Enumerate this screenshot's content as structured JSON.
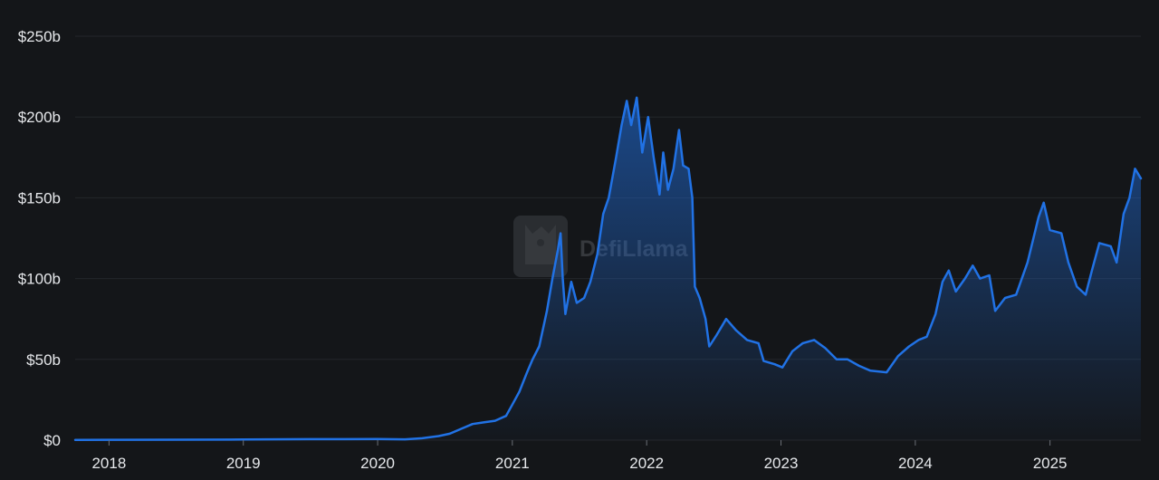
{
  "chart_data": {
    "type": "area",
    "title": "",
    "xlabel": "",
    "ylabel": "",
    "y_unit_prefix": "$",
    "y_unit_suffix": "b",
    "ylim": [
      0,
      250
    ],
    "xlim": [
      "2017-10-01",
      "2025-09-05"
    ],
    "grid": "horizontal",
    "legend": "none",
    "colors": {
      "background": "#141619",
      "line": "#2172e5",
      "fill_top": "#2172e5",
      "grid": "#23262b",
      "text": "#e6e8eb"
    },
    "y_ticks": [
      {
        "value": 0,
        "label": "$0"
      },
      {
        "value": 50,
        "label": "$50b"
      },
      {
        "value": 100,
        "label": "$100b"
      },
      {
        "value": 150,
        "label": "$150b"
      },
      {
        "value": 200,
        "label": "$200b"
      },
      {
        "value": 250,
        "label": "$250b"
      }
    ],
    "x_ticks": [
      {
        "date": "2018-01-01",
        "label": "2018"
      },
      {
        "date": "2019-01-01",
        "label": "2019"
      },
      {
        "date": "2020-01-01",
        "label": "2020"
      },
      {
        "date": "2021-01-01",
        "label": "2021"
      },
      {
        "date": "2022-01-01",
        "label": "2022"
      },
      {
        "date": "2023-01-01",
        "label": "2023"
      },
      {
        "date": "2024-01-01",
        "label": "2024"
      },
      {
        "date": "2025-01-01",
        "label": "2025"
      }
    ],
    "series": [
      {
        "values": [
          [
            "2017-10-01",
            0.1
          ],
          [
            "2018-01-01",
            0.2
          ],
          [
            "2018-07-01",
            0.3
          ],
          [
            "2019-01-01",
            0.4
          ],
          [
            "2019-07-01",
            0.6
          ],
          [
            "2020-01-01",
            0.7
          ],
          [
            "2020-03-15",
            0.5
          ],
          [
            "2020-05-01",
            1.2
          ],
          [
            "2020-06-15",
            2.5
          ],
          [
            "2020-07-15",
            4
          ],
          [
            "2020-08-15",
            7
          ],
          [
            "2020-09-15",
            10
          ],
          [
            "2020-10-15",
            11
          ],
          [
            "2020-11-15",
            12
          ],
          [
            "2020-12-15",
            15
          ],
          [
            "2021-01-01",
            22
          ],
          [
            "2021-01-20",
            30
          ],
          [
            "2021-02-10",
            42
          ],
          [
            "2021-02-25",
            50
          ],
          [
            "2021-03-15",
            58
          ],
          [
            "2021-04-05",
            80
          ],
          [
            "2021-04-20",
            100
          ],
          [
            "2021-05-05",
            118
          ],
          [
            "2021-05-12",
            128
          ],
          [
            "2021-05-18",
            100
          ],
          [
            "2021-05-25",
            78
          ],
          [
            "2021-06-10",
            98
          ],
          [
            "2021-06-25",
            85
          ],
          [
            "2021-07-15",
            88
          ],
          [
            "2021-08-01",
            98
          ],
          [
            "2021-08-20",
            115
          ],
          [
            "2021-09-05",
            140
          ],
          [
            "2021-09-20",
            150
          ],
          [
            "2021-10-10",
            175
          ],
          [
            "2021-10-25",
            195
          ],
          [
            "2021-11-08",
            210
          ],
          [
            "2021-11-20",
            195
          ],
          [
            "2021-12-05",
            212
          ],
          [
            "2021-12-20",
            178
          ],
          [
            "2022-01-05",
            200
          ],
          [
            "2022-01-20",
            175
          ],
          [
            "2022-02-05",
            152
          ],
          [
            "2022-02-15",
            178
          ],
          [
            "2022-02-28",
            155
          ],
          [
            "2022-03-15",
            168
          ],
          [
            "2022-03-30",
            192
          ],
          [
            "2022-04-10",
            170
          ],
          [
            "2022-04-25",
            168
          ],
          [
            "2022-05-05",
            150
          ],
          [
            "2022-05-12",
            95
          ],
          [
            "2022-05-25",
            88
          ],
          [
            "2022-06-10",
            75
          ],
          [
            "2022-06-20",
            58
          ],
          [
            "2022-07-10",
            65
          ],
          [
            "2022-08-05",
            75
          ],
          [
            "2022-09-01",
            68
          ],
          [
            "2022-10-01",
            62
          ],
          [
            "2022-11-01",
            60
          ],
          [
            "2022-11-15",
            49
          ],
          [
            "2022-12-15",
            47
          ],
          [
            "2023-01-05",
            45
          ],
          [
            "2023-02-01",
            55
          ],
          [
            "2023-03-01",
            60
          ],
          [
            "2023-04-01",
            62
          ],
          [
            "2023-05-01",
            57
          ],
          [
            "2023-06-01",
            50
          ],
          [
            "2023-07-01",
            50
          ],
          [
            "2023-08-01",
            46
          ],
          [
            "2023-09-01",
            43
          ],
          [
            "2023-10-15",
            42
          ],
          [
            "2023-11-15",
            52
          ],
          [
            "2023-12-15",
            58
          ],
          [
            "2024-01-10",
            62
          ],
          [
            "2024-02-01",
            64
          ],
          [
            "2024-02-25",
            78
          ],
          [
            "2024-03-15",
            98
          ],
          [
            "2024-04-01",
            105
          ],
          [
            "2024-04-20",
            92
          ],
          [
            "2024-05-15",
            100
          ],
          [
            "2024-06-05",
            108
          ],
          [
            "2024-06-25",
            100
          ],
          [
            "2024-07-20",
            102
          ],
          [
            "2024-08-05",
            80
          ],
          [
            "2024-09-01",
            88
          ],
          [
            "2024-10-01",
            90
          ],
          [
            "2024-11-01",
            110
          ],
          [
            "2024-12-01",
            138
          ],
          [
            "2024-12-15",
            147
          ],
          [
            "2025-01-01",
            130
          ],
          [
            "2025-02-01",
            128
          ],
          [
            "2025-02-20",
            110
          ],
          [
            "2025-03-15",
            95
          ],
          [
            "2025-04-08",
            90
          ],
          [
            "2025-04-25",
            105
          ],
          [
            "2025-05-15",
            122
          ],
          [
            "2025-06-15",
            120
          ],
          [
            "2025-07-01",
            110
          ],
          [
            "2025-07-20",
            140
          ],
          [
            "2025-08-05",
            150
          ],
          [
            "2025-08-20",
            168
          ],
          [
            "2025-09-05",
            162
          ]
        ]
      }
    ]
  },
  "watermark": {
    "text": "DefiLlama",
    "icon": "llama-icon"
  }
}
